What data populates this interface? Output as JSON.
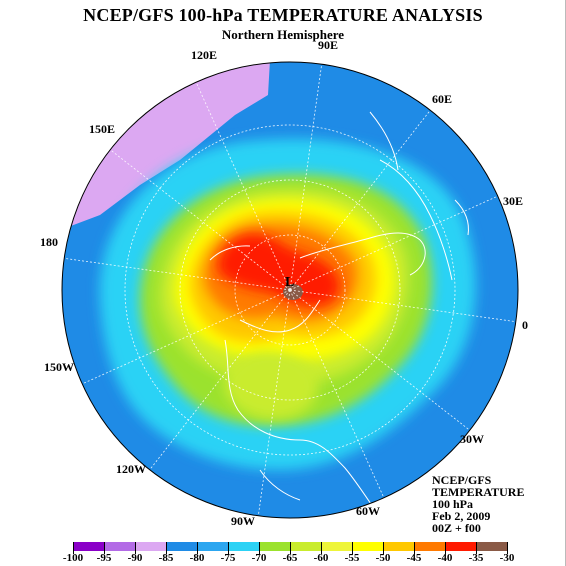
{
  "title": "NCEP/GFS 100-hPa TEMPERATURE ANALYSIS",
  "subtitle": "Northern Hemisphere",
  "longitude_labels": [
    "90E",
    "60E",
    "30E",
    "0",
    "30W",
    "60W",
    "90W",
    "120W",
    "150W",
    "180",
    "150E",
    "120E"
  ],
  "center_marker": "L",
  "info": {
    "line1": "NCEP/GFS",
    "line2": "TEMPERATURE",
    "line3": "100 hPa",
    "line4": "Feb 2, 2009",
    "line5": "00Z + f00"
  },
  "colorbar": {
    "ticks": [
      "-100",
      "-95",
      "-90",
      "-85",
      "-80",
      "-75",
      "-70",
      "-65",
      "-60",
      "-55",
      "-50",
      "-45",
      "-40",
      "-35",
      "-30"
    ],
    "colors": [
      "#8a00c8",
      "#b36be6",
      "#dca8f2",
      "#1f8be6",
      "#2ca6f0",
      "#2cd2f5",
      "#9be22d",
      "#c9ec2d",
      "#eef53a",
      "#ffff00",
      "#ffc800",
      "#ff7a00",
      "#ff1a00",
      "#8a5a46",
      "#8c8c8c"
    ]
  }
}
